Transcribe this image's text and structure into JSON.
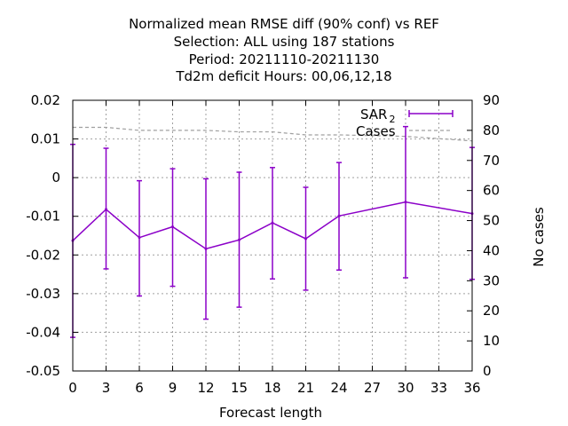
{
  "chart_data": {
    "type": "line",
    "title": [
      "Normalized mean RMSE diff (90% conf) vs REF",
      "Selection: ALL using   187 stations",
      "Period: 20211110-20211130",
      "Td2m deficit   Hours:  00,06,12,18"
    ],
    "xlabel": "Forecast length",
    "ylabel": "",
    "y2label": "No cases",
    "xlim": [
      0,
      36
    ],
    "ylim": [
      -0.05,
      0.02
    ],
    "y2lim": [
      0,
      90
    ],
    "xticks": [
      0,
      3,
      6,
      9,
      12,
      15,
      18,
      21,
      24,
      27,
      30,
      33,
      36
    ],
    "xtick_labels": [
      "0",
      "3",
      "6",
      "9",
      "12",
      "15",
      "18",
      "21",
      "24",
      "27",
      "30",
      "33",
      "36"
    ],
    "yticks": [
      -0.05,
      -0.04,
      -0.03,
      -0.02,
      -0.01,
      0,
      0.01,
      0.02
    ],
    "ytick_labels": [
      "-0.05",
      "-0.04",
      "-0.03",
      "-0.02",
      "-0.01",
      "0",
      "0.01",
      "0.02"
    ],
    "y2ticks": [
      0,
      10,
      20,
      30,
      40,
      50,
      60,
      70,
      80,
      90
    ],
    "y2tick_labels": [
      "0",
      "10",
      "20",
      "30",
      "40",
      "50",
      "60",
      "70",
      "80",
      "90"
    ],
    "grid": true,
    "legend_position": "top-right",
    "series": [
      {
        "name": "SAR",
        "name_sub": "2",
        "axis": "left",
        "color": "#8b00c8",
        "style": "line-errorbars",
        "x": [
          0,
          3,
          6,
          9,
          12,
          15,
          18,
          21,
          24,
          30,
          36
        ],
        "y": [
          -0.0163,
          -0.0082,
          -0.0155,
          -0.0127,
          -0.0184,
          -0.0161,
          -0.0117,
          -0.0158,
          -0.0099,
          -0.0063,
          -0.0093
        ],
        "low": [
          -0.0413,
          -0.0236,
          -0.0306,
          -0.0281,
          -0.0366,
          -0.0335,
          -0.0262,
          -0.0291,
          -0.0239,
          -0.0259,
          -0.0263
        ],
        "high": [
          0.0086,
          0.0076,
          -0.0008,
          0.0023,
          -0.0003,
          0.0014,
          0.0026,
          -0.0025,
          0.0039,
          0.0132,
          0.0078
        ]
      },
      {
        "name": "Cases",
        "axis": "right",
        "color": "#a0a0a0",
        "style": "dashed",
        "x": [
          0,
          3,
          6,
          9,
          12,
          15,
          18,
          21,
          24,
          30,
          36
        ],
        "y": [
          81,
          81,
          80,
          80,
          80,
          79.5,
          79.5,
          78.5,
          78.5,
          78,
          76.5
        ]
      }
    ]
  }
}
